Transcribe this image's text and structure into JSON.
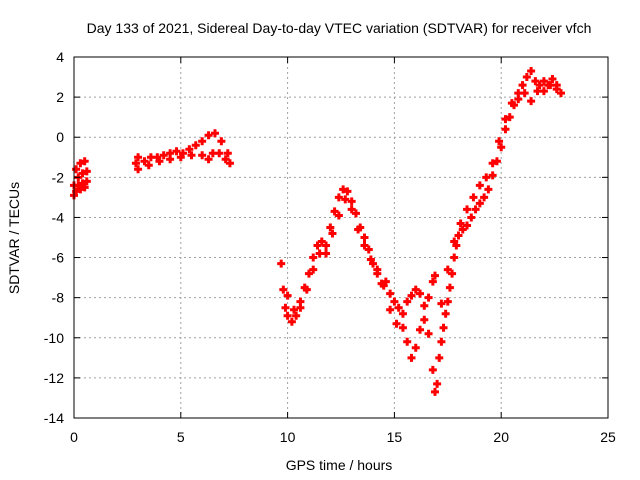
{
  "chart_data": {
    "type": "scatter",
    "title": "Day 133 of 2021, Sidereal Day-to-day VTEC variation (SDTVAR) for receiver vfch",
    "xlabel": "GPS time / hours",
    "ylabel": "SDTVAR / TECUs",
    "xlim": [
      0,
      25
    ],
    "ylim": [
      -14,
      4
    ],
    "xticks": [
      "0",
      "5",
      "10",
      "15",
      "20",
      "25"
    ],
    "yticks": [
      "4",
      "2",
      "0",
      "-2",
      "-4",
      "-6",
      "-8",
      "-10",
      "-12",
      "-14"
    ],
    "grid": true,
    "marker": "+",
    "color": "#ff0000",
    "series": [
      {
        "points": [
          [
            0.0,
            -2.4
          ],
          [
            0.1,
            -1.6
          ],
          [
            0.2,
            -2.0
          ],
          [
            0.3,
            -1.3
          ],
          [
            0.4,
            -1.8
          ],
          [
            0.5,
            -1.2
          ],
          [
            0.6,
            -1.7
          ],
          [
            0.0,
            -2.9
          ],
          [
            0.1,
            -2.7
          ],
          [
            0.2,
            -2.4
          ],
          [
            0.3,
            -2.6
          ],
          [
            0.4,
            -2.3
          ],
          [
            0.5,
            -2.5
          ],
          [
            0.6,
            -2.2
          ],
          [
            2.9,
            -1.3
          ],
          [
            3.0,
            -1.0
          ],
          [
            3.3,
            -1.2
          ],
          [
            3.6,
            -1.0
          ],
          [
            3.9,
            -1.0
          ],
          [
            4.2,
            -0.9
          ],
          [
            4.5,
            -0.8
          ],
          [
            4.8,
            -0.7
          ],
          [
            5.1,
            -0.8
          ],
          [
            5.4,
            -0.6
          ],
          [
            5.7,
            -0.4
          ],
          [
            6.0,
            -0.2
          ],
          [
            6.3,
            0.1
          ],
          [
            6.6,
            0.2
          ],
          [
            6.9,
            -0.2
          ],
          [
            7.2,
            -0.8
          ],
          [
            7.3,
            -1.3
          ],
          [
            3.0,
            -1.6
          ],
          [
            3.5,
            -1.4
          ],
          [
            4.0,
            -1.2
          ],
          [
            4.5,
            -1.1
          ],
          [
            5.0,
            -1.0
          ],
          [
            5.5,
            -0.9
          ],
          [
            6.0,
            -0.9
          ],
          [
            6.3,
            -1.1
          ],
          [
            6.5,
            -0.8
          ],
          [
            6.8,
            -0.8
          ],
          [
            7.1,
            -1.1
          ],
          [
            9.7,
            -6.3
          ],
          [
            9.8,
            -7.6
          ],
          [
            9.9,
            -8.5
          ],
          [
            10.0,
            -8.9
          ],
          [
            10.2,
            -9.2
          ],
          [
            10.4,
            -8.9
          ],
          [
            10.6,
            -8.2
          ],
          [
            10.8,
            -7.5
          ],
          [
            11.0,
            -6.8
          ],
          [
            11.2,
            -6.0
          ],
          [
            11.4,
            -5.4
          ],
          [
            11.6,
            -5.2
          ],
          [
            11.8,
            -5.4
          ],
          [
            12.0,
            -4.5
          ],
          [
            12.2,
            -3.7
          ],
          [
            12.4,
            -3.0
          ],
          [
            12.6,
            -2.6
          ],
          [
            12.8,
            -2.7
          ],
          [
            13.0,
            -3.2
          ],
          [
            13.2,
            -3.8
          ],
          [
            13.4,
            -4.5
          ],
          [
            13.6,
            -5.0
          ],
          [
            13.8,
            -5.6
          ],
          [
            14.0,
            -6.3
          ],
          [
            14.2,
            -6.8
          ],
          [
            14.4,
            -7.3
          ],
          [
            14.6,
            -7.2
          ],
          [
            14.8,
            -7.8
          ],
          [
            15.0,
            -8.2
          ],
          [
            15.2,
            -8.5
          ],
          [
            15.4,
            -8.8
          ],
          [
            15.6,
            -8.2
          ],
          [
            15.8,
            -7.9
          ],
          [
            16.0,
            -7.6
          ],
          [
            16.2,
            -7.8
          ],
          [
            16.4,
            -8.4
          ],
          [
            16.6,
            -8.0
          ],
          [
            16.8,
            -7.2
          ],
          [
            16.9,
            -6.9
          ],
          [
            10.0,
            -7.9
          ],
          [
            10.3,
            -8.6
          ],
          [
            10.6,
            -8.5
          ],
          [
            10.9,
            -7.6
          ],
          [
            11.2,
            -6.6
          ],
          [
            11.5,
            -5.8
          ],
          [
            11.8,
            -5.8
          ],
          [
            12.1,
            -4.8
          ],
          [
            12.4,
            -3.9
          ],
          [
            12.7,
            -3.1
          ],
          [
            13.0,
            -3.6
          ],
          [
            13.3,
            -4.6
          ],
          [
            13.6,
            -5.4
          ],
          [
            13.9,
            -6.1
          ],
          [
            14.2,
            -6.6
          ],
          [
            14.5,
            -7.4
          ],
          [
            14.8,
            -8.6
          ],
          [
            15.1,
            -9.3
          ],
          [
            15.4,
            -9.5
          ],
          [
            15.6,
            -10.2
          ],
          [
            15.8,
            -11.0
          ],
          [
            16.0,
            -10.5
          ],
          [
            16.2,
            -9.6
          ],
          [
            16.4,
            -9.1
          ],
          [
            16.6,
            -9.8
          ],
          [
            16.8,
            -11.6
          ],
          [
            16.9,
            -12.7
          ],
          [
            17.0,
            -12.3
          ],
          [
            17.1,
            -11.0
          ],
          [
            17.2,
            -10.2
          ],
          [
            17.3,
            -9.5
          ],
          [
            17.4,
            -8.8
          ],
          [
            17.5,
            -8.2
          ],
          [
            17.6,
            -7.5
          ],
          [
            17.7,
            -6.8
          ],
          [
            17.8,
            -6.0
          ],
          [
            17.9,
            -5.4
          ],
          [
            18.0,
            -4.9
          ],
          [
            18.2,
            -4.6
          ],
          [
            18.4,
            -4.4
          ],
          [
            18.6,
            -4.0
          ],
          [
            18.8,
            -3.6
          ],
          [
            19.0,
            -3.3
          ],
          [
            19.2,
            -3.0
          ],
          [
            19.4,
            -2.6
          ],
          [
            19.6,
            -1.9
          ],
          [
            19.8,
            -1.2
          ],
          [
            20.0,
            -0.5
          ],
          [
            20.2,
            0.4
          ],
          [
            20.4,
            1.0
          ],
          [
            20.6,
            1.6
          ],
          [
            20.8,
            2.2
          ],
          [
            21.0,
            2.6
          ],
          [
            21.2,
            3.0
          ],
          [
            21.4,
            3.3
          ],
          [
            21.6,
            2.8
          ],
          [
            21.8,
            2.6
          ],
          [
            22.0,
            2.8
          ],
          [
            22.2,
            2.6
          ],
          [
            22.4,
            2.9
          ],
          [
            22.6,
            2.6
          ],
          [
            22.8,
            2.2
          ],
          [
            17.2,
            -8.3
          ],
          [
            17.5,
            -6.6
          ],
          [
            17.8,
            -5.2
          ],
          [
            18.1,
            -4.3
          ],
          [
            18.4,
            -3.6
          ],
          [
            18.7,
            -3.0
          ],
          [
            19.0,
            -2.4
          ],
          [
            19.3,
            -2.0
          ],
          [
            19.6,
            -1.3
          ],
          [
            19.9,
            -0.2
          ],
          [
            20.2,
            0.9
          ],
          [
            20.5,
            1.7
          ],
          [
            20.8,
            1.9
          ],
          [
            21.1,
            2.2
          ],
          [
            21.4,
            1.8
          ],
          [
            21.7,
            2.3
          ],
          [
            22.0,
            2.3
          ],
          [
            22.3,
            2.6
          ],
          [
            22.6,
            2.4
          ]
        ]
      }
    ]
  }
}
